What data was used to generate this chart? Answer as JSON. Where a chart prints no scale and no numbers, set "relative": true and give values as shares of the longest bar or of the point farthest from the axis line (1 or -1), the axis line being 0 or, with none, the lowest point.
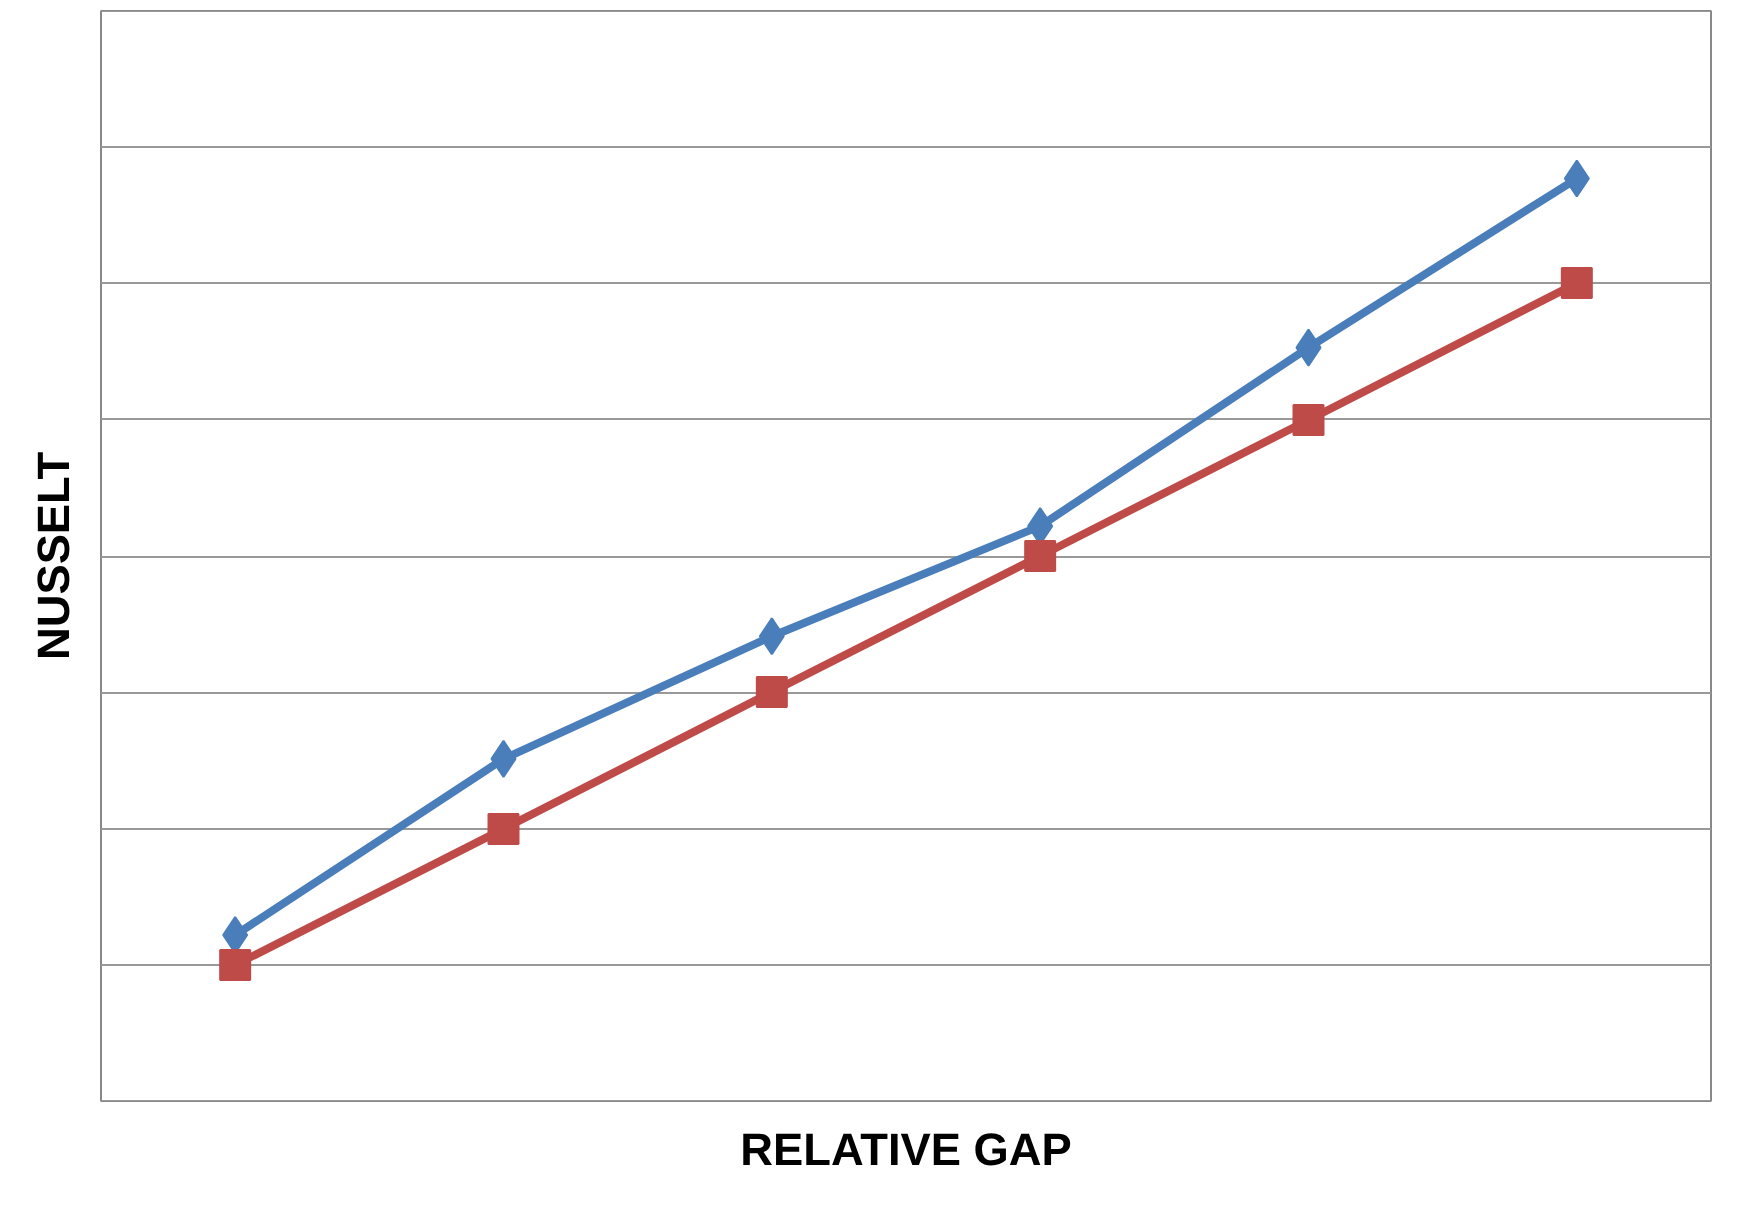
{
  "chart_data": {
    "type": "line",
    "xlabel": "RELATIVE GAP",
    "ylabel": "NUSSELT",
    "relative": true,
    "grid": "y",
    "line_style": "solid",
    "categories": [
      null,
      null,
      null,
      null,
      null,
      null
    ],
    "series": [
      {
        "color": "#4a7ebb",
        "marker": "diamond",
        "values": [
          0.038,
          0.262,
          0.418,
          0.558,
          0.785,
          1.0
        ]
      },
      {
        "color": "#be4b48",
        "marker": "square",
        "values": [
          0.0,
          0.173,
          0.347,
          0.52,
          0.693,
          0.867
        ]
      }
    ]
  }
}
